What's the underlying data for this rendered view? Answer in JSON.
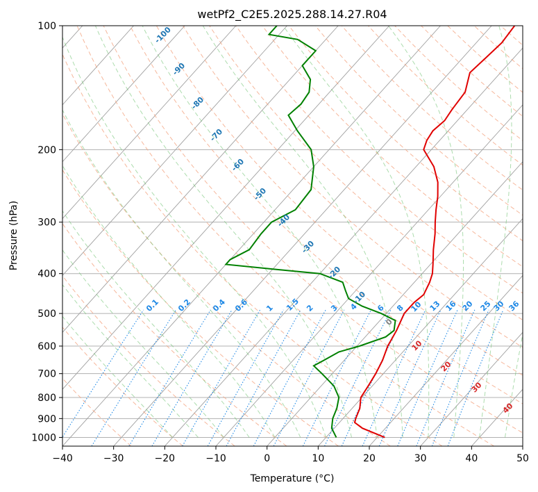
{
  "chart_data": {
    "type": "skew-t",
    "title": "wetPf2_C2E5.2025.288.14.27.R04",
    "xlabel": "Temperature (°C)",
    "ylabel": "Pressure (hPa)",
    "xlim": [
      -40,
      50
    ],
    "ylim": [
      1050,
      100
    ],
    "x_ticks": [
      -40,
      -30,
      -20,
      -10,
      0,
      10,
      20,
      30,
      40,
      50
    ],
    "x_tick_labels": [
      "−40",
      "−30",
      "−20",
      "−10",
      "0",
      "10",
      "20",
      "30",
      "40",
      "50"
    ],
    "y_ticks": [
      100,
      200,
      300,
      400,
      500,
      600,
      700,
      800,
      900,
      1000
    ],
    "y_tick_labels": [
      "100",
      "200",
      "300",
      "400",
      "500",
      "600",
      "700",
      "800",
      "900",
      "1000"
    ],
    "y_scale": "log",
    "grid": true,
    "series": [
      {
        "color": "#e00000",
        "points": [
          [
            1000,
            21.5
          ],
          [
            950,
            15.5
          ],
          [
            920,
            13.0
          ],
          [
            900,
            12.5
          ],
          [
            850,
            11.5
          ],
          [
            800,
            9.8
          ],
          [
            750,
            9.2
          ],
          [
            700,
            8.5
          ],
          [
            650,
            7.5
          ],
          [
            600,
            6.0
          ],
          [
            550,
            5.0
          ],
          [
            500,
            3.5
          ],
          [
            470,
            3.5
          ],
          [
            450,
            4.0
          ],
          [
            420,
            3.0
          ],
          [
            400,
            2.0
          ],
          [
            380,
            0.5
          ],
          [
            350,
            -2.0
          ],
          [
            320,
            -4.5
          ],
          [
            300,
            -6.5
          ],
          [
            280,
            -8.5
          ],
          [
            260,
            -10.5
          ],
          [
            240,
            -13.0
          ],
          [
            220,
            -16.5
          ],
          [
            200,
            -21.5
          ],
          [
            190,
            -22.5
          ],
          [
            180,
            -23.0
          ],
          [
            170,
            -22.5
          ],
          [
            160,
            -23.0
          ],
          [
            145,
            -23.5
          ],
          [
            130,
            -26.0
          ],
          [
            120,
            -25.5
          ],
          [
            110,
            -25.0
          ],
          [
            100,
            -25.5
          ]
        ]
      },
      {
        "color": "#008000",
        "points": [
          [
            1000,
            12.0
          ],
          [
            950,
            9.5
          ],
          [
            900,
            8.0
          ],
          [
            850,
            7.0
          ],
          [
            800,
            5.5
          ],
          [
            750,
            2.5
          ],
          [
            700,
            -2.0
          ],
          [
            670,
            -5.0
          ],
          [
            650,
            -4.0
          ],
          [
            620,
            -2.5
          ],
          [
            600,
            0.5
          ],
          [
            570,
            4.0
          ],
          [
            550,
            4.5
          ],
          [
            520,
            3.0
          ],
          [
            500,
            -1.0
          ],
          [
            480,
            -6.0
          ],
          [
            460,
            -10.0
          ],
          [
            440,
            -12.0
          ],
          [
            420,
            -14.0
          ],
          [
            400,
            -20.0
          ],
          [
            390,
            -30.0
          ],
          [
            380,
            -40.0
          ],
          [
            370,
            -40.0
          ],
          [
            350,
            -38.0
          ],
          [
            320,
            -38.5
          ],
          [
            300,
            -38.5
          ],
          [
            280,
            -36.0
          ],
          [
            250,
            -36.5
          ],
          [
            220,
            -40.0
          ],
          [
            200,
            -43.5
          ],
          [
            180,
            -49.5
          ],
          [
            165,
            -54.0
          ],
          [
            155,
            -53.5
          ],
          [
            145,
            -54.0
          ],
          [
            135,
            -56.0
          ],
          [
            125,
            -60.0
          ],
          [
            115,
            -60.0
          ],
          [
            108,
            -65.5
          ],
          [
            105,
            -72.0
          ],
          [
            100,
            -72.0
          ]
        ]
      }
    ],
    "dry_adiabat_labels": [
      "0",
      "10",
      "20",
      "30",
      "40"
    ],
    "moist_adiabat_labels": [
      "-100",
      "-90",
      "-80",
      "-70",
      "-60",
      "-50",
      "-40",
      "-30",
      "-20",
      "-10"
    ],
    "mixing_ratio_labels": [
      "0.1",
      "0.2",
      "0.4",
      "0.6",
      "1",
      "1.5",
      "2",
      "3",
      "4",
      "6",
      "8",
      "10",
      "13",
      "16",
      "20",
      "25",
      "30",
      "36"
    ],
    "colors": {
      "temperature": "#e00000",
      "dewpoint": "#008000",
      "dry_adiabat": "#f4a582",
      "dry_adiabat_label": "#d62728",
      "moist_adiabat": "#74c476",
      "moist_adiabat_label": "#1f77b4",
      "mixing_ratio": "#1e88e5",
      "isotherm": "#a0a0a0",
      "zero_label": "#808080"
    }
  }
}
